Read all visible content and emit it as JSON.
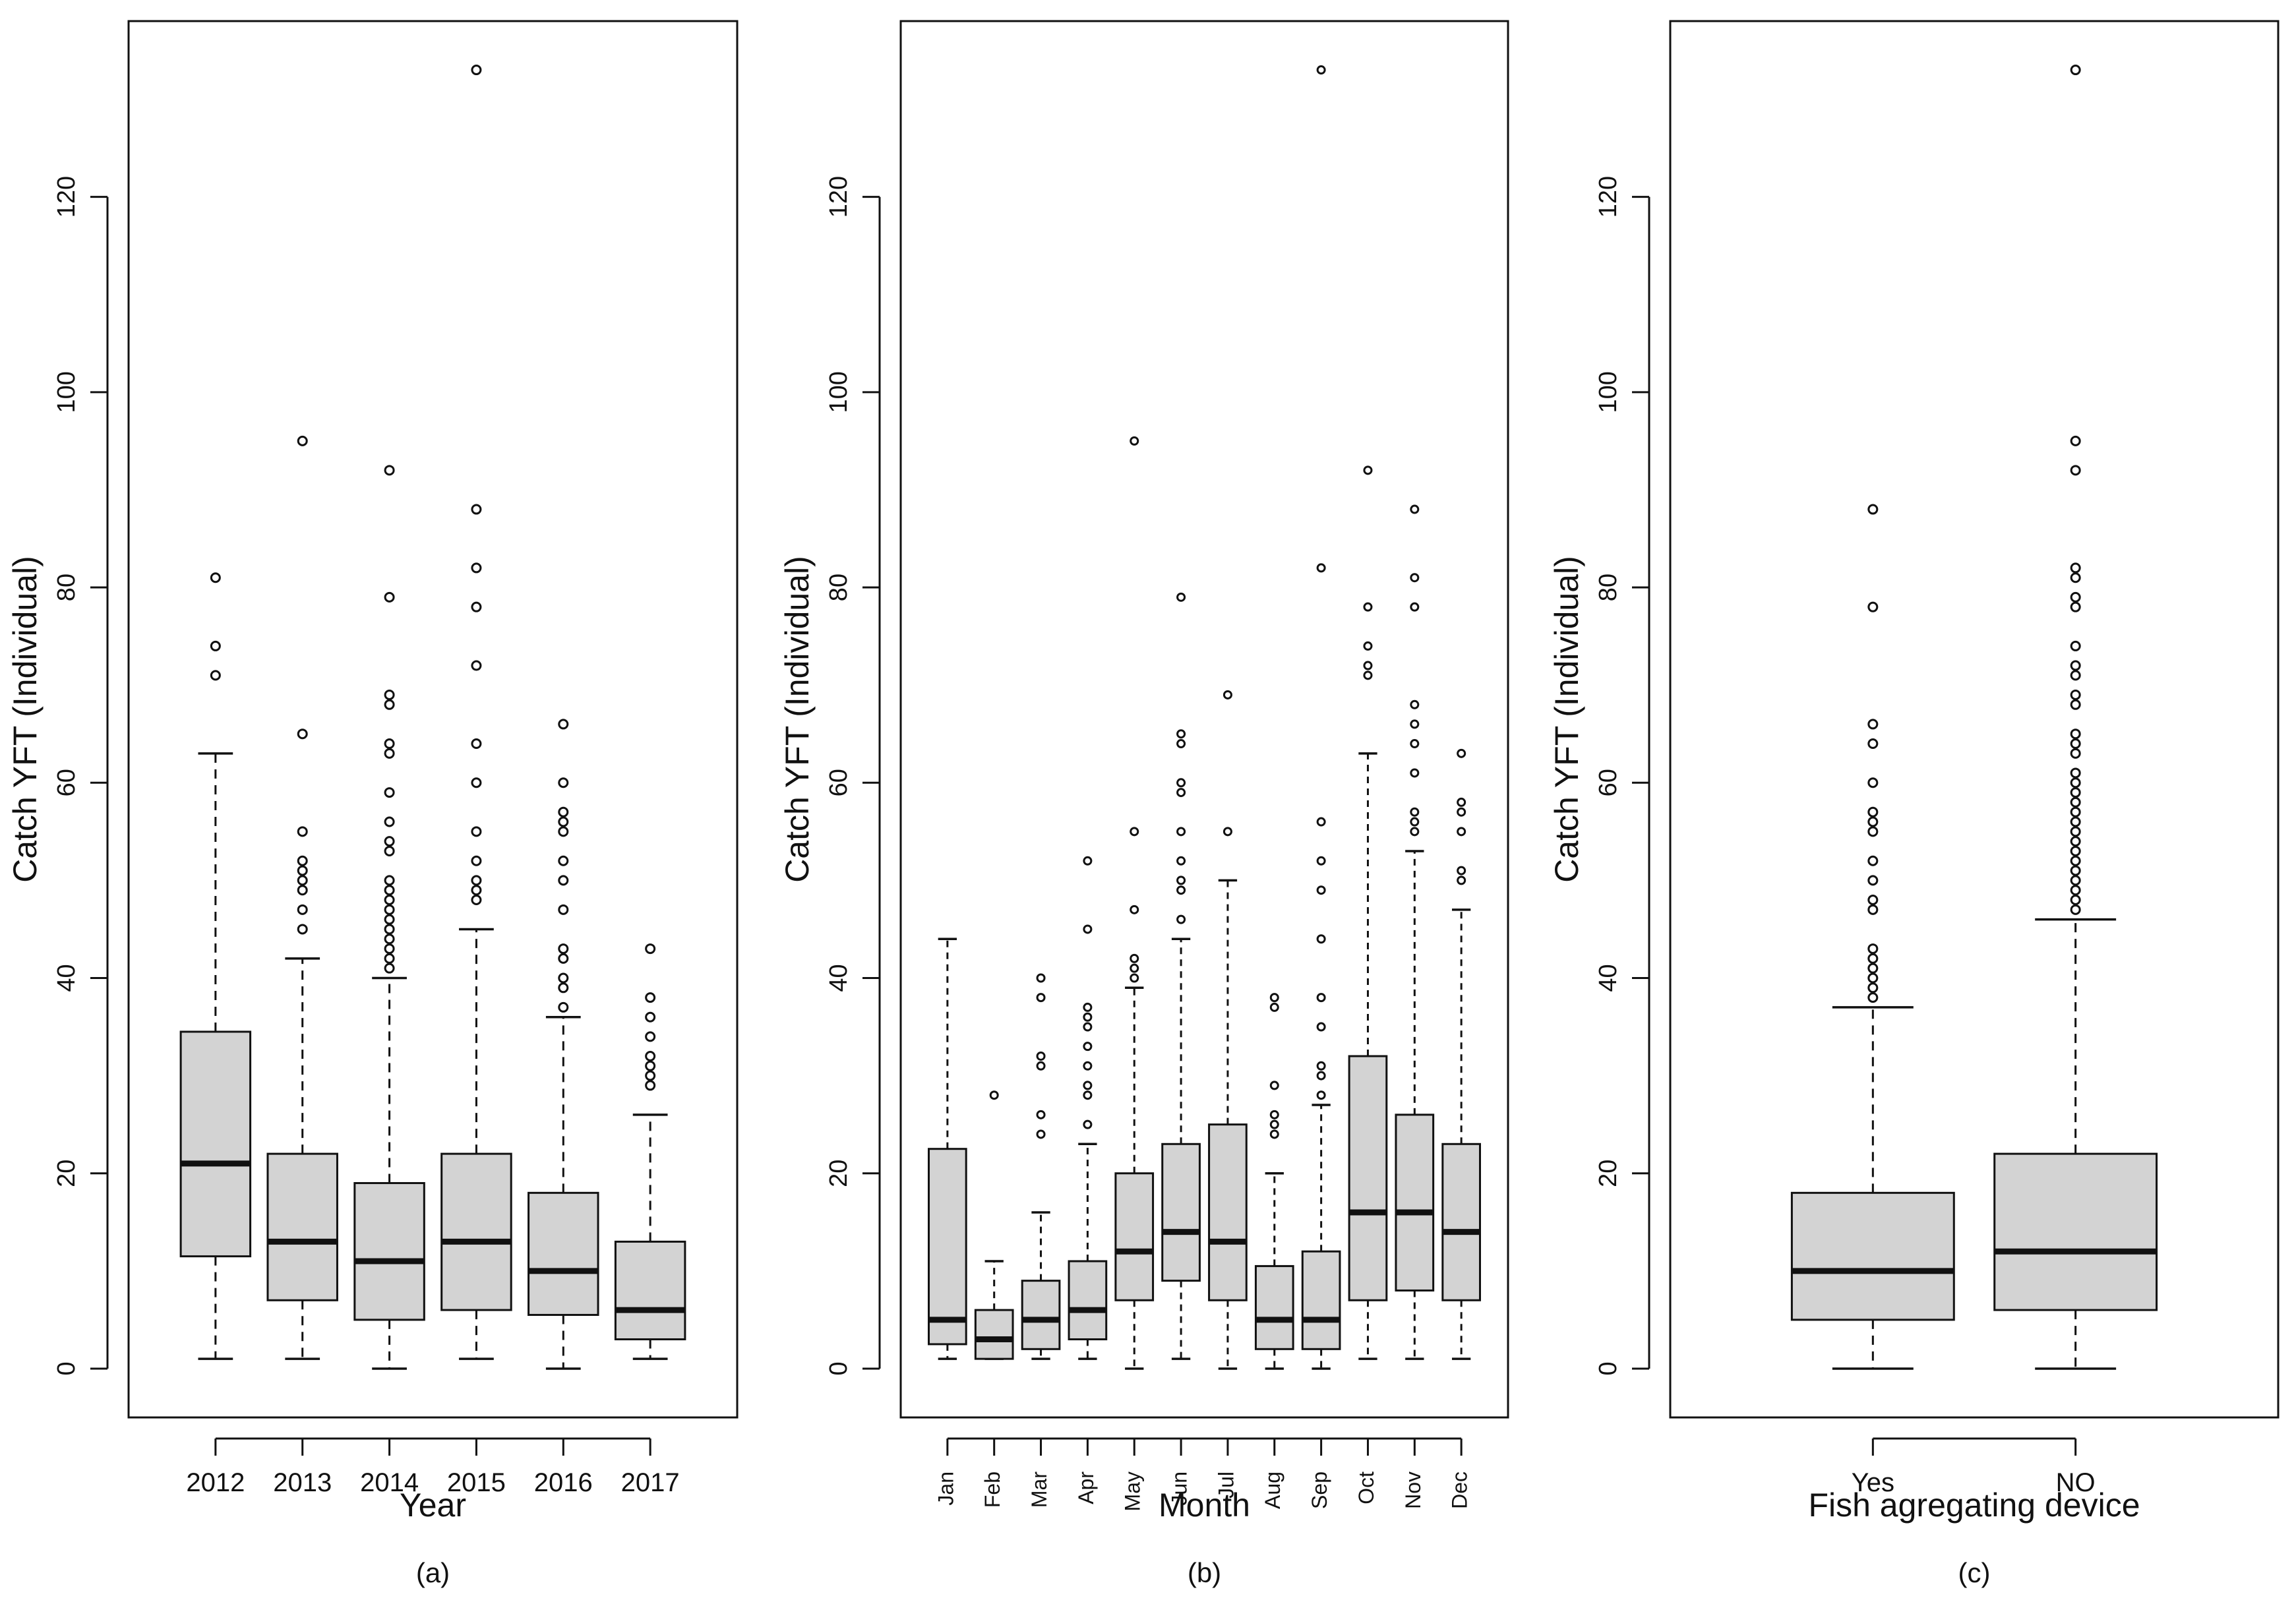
{
  "chart_data": [
    {
      "type": "box",
      "panel_label": "(a)",
      "xlabel": "Year",
      "ylabel": "Catch YFT (Individual)",
      "ylim": [
        -5,
        138
      ],
      "yticks": [
        0,
        20,
        40,
        60,
        80,
        100,
        120
      ],
      "rotate_category_labels": false,
      "categories": [
        "2012",
        "2013",
        "2014",
        "2015",
        "2016",
        "2017"
      ],
      "boxes": [
        {
          "whisker_low": 1,
          "q1": 11.5,
          "median": 21,
          "q3": 34.5,
          "whisker_high": 63,
          "outliers": [
            71,
            74,
            81
          ]
        },
        {
          "whisker_low": 1,
          "q1": 7,
          "median": 13,
          "q3": 22,
          "whisker_high": 42,
          "outliers": [
            45,
            47,
            49,
            50,
            51,
            52,
            55,
            65,
            95
          ]
        },
        {
          "whisker_low": 0,
          "q1": 5,
          "median": 11,
          "q3": 19,
          "whisker_high": 40,
          "outliers": [
            41,
            42,
            43,
            44,
            45,
            46,
            47,
            48,
            49,
            50,
            53,
            54,
            56,
            59,
            63,
            64,
            68,
            69,
            79,
            92
          ]
        },
        {
          "whisker_low": 1,
          "q1": 6,
          "median": 13,
          "q3": 22,
          "whisker_high": 45,
          "outliers": [
            48,
            49,
            50,
            52,
            55,
            60,
            64,
            72,
            78,
            82,
            88,
            133
          ]
        },
        {
          "whisker_low": 0,
          "q1": 5.5,
          "median": 10,
          "q3": 18,
          "whisker_high": 36,
          "outliers": [
            37,
            39,
            40,
            42,
            43,
            47,
            50,
            52,
            55,
            56,
            57,
            60,
            66
          ]
        },
        {
          "whisker_low": 1,
          "q1": 3,
          "median": 6,
          "q3": 13,
          "whisker_high": 26,
          "outliers": [
            29,
            30,
            31,
            32,
            34,
            36,
            38,
            43
          ]
        }
      ]
    },
    {
      "type": "box",
      "panel_label": "(b)",
      "xlabel": "Month",
      "ylabel": "Catch YFT (Individual)",
      "ylim": [
        -5,
        138
      ],
      "yticks": [
        0,
        20,
        40,
        60,
        80,
        100,
        120
      ],
      "rotate_category_labels": true,
      "categories": [
        "Jan",
        "Feb",
        "Mar",
        "Apr",
        "May",
        "Jun",
        "Jul",
        "Aug",
        "Sep",
        "Oct",
        "Nov",
        "Dec"
      ],
      "boxes": [
        {
          "whisker_low": 1,
          "q1": 2.5,
          "median": 5,
          "q3": 22.5,
          "whisker_high": 44,
          "outliers": []
        },
        {
          "whisker_low": 1,
          "q1": 1,
          "median": 3,
          "q3": 6,
          "whisker_high": 11,
          "outliers": [
            28
          ]
        },
        {
          "whisker_low": 1,
          "q1": 2,
          "median": 5,
          "q3": 9,
          "whisker_high": 16,
          "outliers": [
            24,
            26,
            31,
            32,
            38,
            40
          ]
        },
        {
          "whisker_low": 1,
          "q1": 3,
          "median": 6,
          "q3": 11,
          "whisker_high": 23,
          "outliers": [
            25,
            28,
            29,
            31,
            33,
            35,
            36,
            37,
            45,
            52
          ]
        },
        {
          "whisker_low": 0,
          "q1": 7,
          "median": 12,
          "q3": 20,
          "whisker_high": 39,
          "outliers": [
            40,
            41,
            42,
            47,
            55,
            95
          ]
        },
        {
          "whisker_low": 1,
          "q1": 9,
          "median": 14,
          "q3": 23,
          "whisker_high": 44,
          "outliers": [
            46,
            49,
            50,
            52,
            55,
            59,
            60,
            64,
            65,
            79
          ]
        },
        {
          "whisker_low": 0,
          "q1": 7,
          "median": 13,
          "q3": 25,
          "whisker_high": 50,
          "outliers": [
            55,
            69
          ]
        },
        {
          "whisker_low": 0,
          "q1": 2,
          "median": 5,
          "q3": 10.5,
          "whisker_high": 20,
          "outliers": [
            24,
            25,
            26,
            29,
            37,
            38
          ]
        },
        {
          "whisker_low": 0,
          "q1": 2,
          "median": 5,
          "q3": 12,
          "whisker_high": 27,
          "outliers": [
            28,
            30,
            31,
            35,
            38,
            44,
            49,
            52,
            56,
            82,
            133
          ]
        },
        {
          "whisker_low": 1,
          "q1": 7,
          "median": 16,
          "q3": 32,
          "whisker_high": 63,
          "outliers": [
            71,
            72,
            74,
            78,
            92
          ]
        },
        {
          "whisker_low": 1,
          "q1": 8,
          "median": 16,
          "q3": 26,
          "whisker_high": 53,
          "outliers": [
            55,
            56,
            57,
            61,
            64,
            66,
            68,
            78,
            81,
            88
          ]
        },
        {
          "whisker_low": 1,
          "q1": 7,
          "median": 14,
          "q3": 23,
          "whisker_high": 47,
          "outliers": [
            50,
            51,
            55,
            57,
            58,
            63
          ]
        }
      ]
    },
    {
      "type": "box",
      "panel_label": "(c)",
      "xlabel": "Fish agregating device",
      "ylabel": "Catch YFT (Individual)",
      "ylim": [
        -5,
        138
      ],
      "yticks": [
        0,
        20,
        40,
        60,
        80,
        100,
        120
      ],
      "rotate_category_labels": false,
      "categories": [
        "Yes",
        "NO"
      ],
      "boxes": [
        {
          "whisker_low": 0,
          "q1": 5,
          "median": 10,
          "q3": 18,
          "whisker_high": 37,
          "outliers": [
            38,
            39,
            40,
            41,
            42,
            43,
            47,
            48,
            50,
            52,
            55,
            56,
            57,
            60,
            64,
            66,
            78,
            88
          ]
        },
        {
          "whisker_low": 0,
          "q1": 6,
          "median": 12,
          "q3": 22,
          "whisker_high": 46,
          "outliers": [
            47,
            48,
            49,
            50,
            51,
            52,
            53,
            54,
            55,
            56,
            57,
            58,
            59,
            60,
            61,
            63,
            64,
            65,
            68,
            69,
            71,
            72,
            74,
            78,
            79,
            81,
            82,
            92,
            95,
            133
          ]
        }
      ]
    }
  ],
  "colors": {
    "box_fill": "#d3d3d3",
    "line": "#111111",
    "background": "#ffffff"
  }
}
